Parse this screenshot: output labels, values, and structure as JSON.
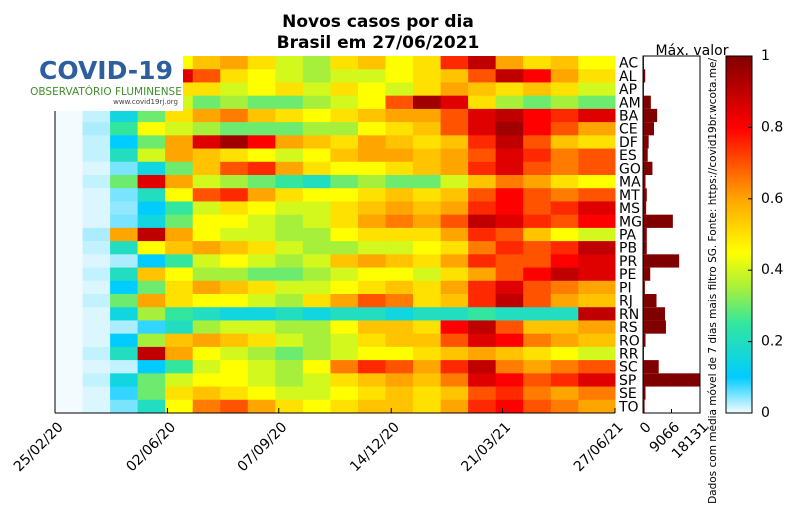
{
  "logo": {
    "title": "COVID-19",
    "subtitle": "OBSERVATÓRIO FLUMINENSE",
    "url": "www.covid19rj.org"
  },
  "note": "Dados com média móvel de 7 dias mais filtro SG. Fonte: https://covid19br.wcota.me/",
  "chart_data": [
    {
      "type": "heatmap",
      "title": "Novos casos por dia",
      "subtitle": "Brasil em 27/06/2021",
      "x": [
        "2020-02-25",
        "2020-03-20",
        "2020-04-13",
        "2020-05-07",
        "2020-05-31",
        "2020-06-24",
        "2020-07-18",
        "2020-08-11",
        "2020-09-04",
        "2020-09-28",
        "2020-10-22",
        "2020-11-15",
        "2020-12-09",
        "2021-01-02",
        "2021-01-26",
        "2021-02-19",
        "2021-03-15",
        "2021-04-08",
        "2021-05-02",
        "2021-05-26"
      ],
      "xlim": [
        "2020-02-25",
        "2021-06-27"
      ],
      "xticks": [
        {
          "value": "2020-02-25",
          "label": "25/02/20"
        },
        {
          "value": "2020-06-02",
          "label": "02/06/20"
        },
        {
          "value": "2020-09-07",
          "label": "07/09/20"
        },
        {
          "value": "2020-12-14",
          "label": "14/12/20"
        },
        {
          "value": "2021-03-21",
          "label": "21/03/21"
        },
        {
          "value": "2021-06-27",
          "label": "27/06/21"
        }
      ],
      "categories": [
        "AC",
        "AL",
        "AP",
        "AM",
        "BA",
        "CE",
        "DF",
        "ES",
        "GO",
        "MA",
        "MT",
        "MS",
        "MG",
        "PA",
        "PB",
        "PR",
        "PE",
        "PI",
        "RJ",
        "RN",
        "RS",
        "RO",
        "RR",
        "SC",
        "SP",
        "SE",
        "TO"
      ],
      "values": [
        [
          0,
          0.02,
          0.35,
          0.5,
          0.45,
          0.55,
          0.6,
          0.5,
          0.4,
          0.35,
          0.5,
          0.55,
          0.45,
          0.5,
          0.75,
          0.9,
          0.6,
          0.5,
          0.55,
          0.45
        ],
        [
          0,
          0.05,
          0.5,
          0.9,
          0.85,
          0.7,
          0.5,
          0.45,
          0.4,
          0.35,
          0.4,
          0.4,
          0.45,
          0.5,
          0.55,
          0.7,
          0.9,
          0.8,
          0.6,
          0.5
        ],
        [
          0,
          0.05,
          0.4,
          0.6,
          0.5,
          0.5,
          0.4,
          0.45,
          0.5,
          0.4,
          0.5,
          0.45,
          0.4,
          0.5,
          0.6,
          0.55,
          0.5,
          0.55,
          0.5,
          0.4
        ],
        [
          0,
          0.05,
          0.7,
          0.6,
          0.4,
          0.3,
          0.35,
          0.3,
          0.3,
          0.35,
          0.4,
          0.45,
          0.7,
          0.95,
          0.85,
          0.5,
          0.35,
          0.3,
          0.35,
          0.3
        ],
        [
          0,
          0.02,
          0.15,
          0.3,
          0.5,
          0.6,
          0.65,
          0.55,
          0.5,
          0.45,
          0.5,
          0.55,
          0.6,
          0.6,
          0.7,
          0.85,
          0.9,
          0.8,
          0.75,
          0.85
        ],
        [
          0,
          0.03,
          0.25,
          0.45,
          0.4,
          0.35,
          0.3,
          0.3,
          0.3,
          0.35,
          0.35,
          0.45,
          0.5,
          0.55,
          0.7,
          0.85,
          0.95,
          0.8,
          0.7,
          0.6
        ],
        [
          0,
          0.02,
          0.1,
          0.3,
          0.6,
          0.85,
          0.95,
          0.8,
          0.6,
          0.55,
          0.5,
          0.6,
          0.55,
          0.5,
          0.55,
          0.75,
          0.9,
          0.7,
          0.55,
          0.5
        ],
        [
          0,
          0.02,
          0.2,
          0.4,
          0.6,
          0.55,
          0.5,
          0.45,
          0.4,
          0.45,
          0.55,
          0.6,
          0.6,
          0.55,
          0.6,
          0.7,
          0.85,
          0.75,
          0.65,
          0.7
        ],
        [
          0,
          0.01,
          0.05,
          0.15,
          0.3,
          0.55,
          0.7,
          0.75,
          0.6,
          0.5,
          0.45,
          0.45,
          0.5,
          0.55,
          0.6,
          0.75,
          0.85,
          0.7,
          0.65,
          0.7
        ],
        [
          0,
          0.02,
          0.3,
          0.85,
          0.6,
          0.4,
          0.35,
          0.3,
          0.25,
          0.2,
          0.3,
          0.35,
          0.3,
          0.3,
          0.4,
          0.55,
          0.65,
          0.6,
          0.5,
          0.45
        ],
        [
          0,
          0.01,
          0.05,
          0.2,
          0.45,
          0.7,
          0.75,
          0.6,
          0.5,
          0.45,
          0.45,
          0.5,
          0.55,
          0.5,
          0.55,
          0.7,
          0.8,
          0.7,
          0.65,
          0.7
        ],
        [
          0,
          0.01,
          0.04,
          0.1,
          0.25,
          0.4,
          0.5,
          0.45,
          0.4,
          0.4,
          0.5,
          0.55,
          0.6,
          0.55,
          0.6,
          0.75,
          0.8,
          0.7,
          0.75,
          0.85
        ],
        [
          0,
          0.01,
          0.05,
          0.15,
          0.3,
          0.45,
          0.45,
          0.4,
          0.35,
          0.4,
          0.5,
          0.6,
          0.65,
          0.6,
          0.7,
          0.9,
          0.85,
          0.75,
          0.7,
          0.8
        ],
        [
          0,
          0.03,
          0.6,
          0.9,
          0.6,
          0.45,
          0.4,
          0.4,
          0.35,
          0.35,
          0.45,
          0.5,
          0.5,
          0.5,
          0.6,
          0.75,
          0.7,
          0.55,
          0.45,
          0.4
        ],
        [
          0,
          0.02,
          0.2,
          0.45,
          0.55,
          0.6,
          0.55,
          0.5,
          0.4,
          0.35,
          0.35,
          0.4,
          0.4,
          0.45,
          0.5,
          0.65,
          0.75,
          0.7,
          0.75,
          0.9
        ],
        [
          0,
          0.01,
          0.03,
          0.1,
          0.25,
          0.4,
          0.45,
          0.4,
          0.35,
          0.4,
          0.55,
          0.6,
          0.55,
          0.5,
          0.6,
          0.75,
          0.7,
          0.7,
          0.8,
          0.85
        ],
        [
          0,
          0.02,
          0.2,
          0.55,
          0.45,
          0.35,
          0.35,
          0.3,
          0.3,
          0.35,
          0.4,
          0.45,
          0.45,
          0.4,
          0.5,
          0.6,
          0.7,
          0.8,
          0.9,
          0.85
        ],
        [
          0,
          0.01,
          0.1,
          0.3,
          0.5,
          0.6,
          0.55,
          0.5,
          0.4,
          0.4,
          0.45,
          0.5,
          0.55,
          0.5,
          0.6,
          0.75,
          0.85,
          0.7,
          0.65,
          0.6
        ],
        [
          0,
          0.02,
          0.3,
          0.6,
          0.5,
          0.45,
          0.45,
          0.4,
          0.35,
          0.5,
          0.6,
          0.7,
          0.65,
          0.5,
          0.55,
          0.75,
          0.9,
          0.7,
          0.6,
          0.55
        ],
        [
          0,
          0.01,
          0.15,
          0.35,
          0.25,
          0.2,
          0.15,
          0.15,
          0.2,
          0.15,
          0.2,
          0.2,
          0.15,
          0.2,
          0.2,
          0.25,
          0.2,
          0.2,
          0.2,
          0.9
        ],
        [
          0,
          0.01,
          0.03,
          0.08,
          0.2,
          0.35,
          0.4,
          0.4,
          0.35,
          0.35,
          0.45,
          0.55,
          0.55,
          0.5,
          0.8,
          0.9,
          0.7,
          0.55,
          0.55,
          0.6
        ],
        [
          0,
          0.01,
          0.1,
          0.35,
          0.55,
          0.6,
          0.55,
          0.5,
          0.4,
          0.35,
          0.4,
          0.5,
          0.55,
          0.55,
          0.7,
          0.85,
          0.8,
          0.65,
          0.6,
          0.55
        ],
        [
          0,
          0.02,
          0.2,
          0.9,
          0.6,
          0.45,
          0.4,
          0.35,
          0.3,
          0.35,
          0.4,
          0.45,
          0.45,
          0.5,
          0.55,
          0.6,
          0.55,
          0.5,
          0.45,
          0.4
        ],
        [
          0,
          0.01,
          0.02,
          0.1,
          0.25,
          0.4,
          0.45,
          0.4,
          0.35,
          0.45,
          0.65,
          0.75,
          0.7,
          0.6,
          0.75,
          0.9,
          0.65,
          0.6,
          0.65,
          0.7
        ],
        [
          0,
          0.02,
          0.15,
          0.3,
          0.4,
          0.45,
          0.45,
          0.4,
          0.35,
          0.4,
          0.5,
          0.55,
          0.6,
          0.55,
          0.65,
          0.85,
          0.8,
          0.7,
          0.75,
          0.85
        ],
        [
          0,
          0.01,
          0.08,
          0.3,
          0.5,
          0.55,
          0.5,
          0.45,
          0.4,
          0.4,
          0.45,
          0.5,
          0.55,
          0.5,
          0.55,
          0.7,
          0.75,
          0.65,
          0.6,
          0.65
        ],
        [
          0,
          0.01,
          0.05,
          0.2,
          0.45,
          0.65,
          0.7,
          0.6,
          0.5,
          0.45,
          0.5,
          0.55,
          0.55,
          0.5,
          0.6,
          0.75,
          0.8,
          0.7,
          0.65,
          0.6
        ]
      ],
      "colorscale": [
        [
          0,
          "#f4fbff"
        ],
        [
          0.1,
          "#00ccff"
        ],
        [
          0.25,
          "#33e6a0"
        ],
        [
          0.35,
          "#a6f03c"
        ],
        [
          0.45,
          "#ffff00"
        ],
        [
          0.6,
          "#ffa500"
        ],
        [
          0.8,
          "#ff0000"
        ],
        [
          1,
          "#800000"
        ]
      ],
      "clim": [
        0,
        1
      ],
      "cticks": [
        0,
        0.2,
        0.4,
        0.6,
        0.8,
        1
      ]
    },
    {
      "type": "bar",
      "orientation": "horizontal",
      "title": "Máx. valor",
      "color": "#800000",
      "categories": [
        "AC",
        "AL",
        "AP",
        "AM",
        "BA",
        "CE",
        "DF",
        "ES",
        "GO",
        "MA",
        "MT",
        "MS",
        "MG",
        "PA",
        "PB",
        "PR",
        "PE",
        "PI",
        "RJ",
        "RN",
        "RS",
        "RO",
        "RR",
        "SC",
        "SP",
        "SE",
        "TO"
      ],
      "values": [
        300,
        700,
        300,
        2500,
        4500,
        3500,
        1800,
        1500,
        3000,
        800,
        1200,
        1000,
        9500,
        1200,
        1200,
        11500,
        2300,
        600,
        4300,
        7000,
        7300,
        800,
        300,
        5000,
        18131,
        800,
        500
      ],
      "xlim": [
        0,
        18131
      ],
      "xticks": [
        0,
        9066,
        18131
      ]
    }
  ]
}
